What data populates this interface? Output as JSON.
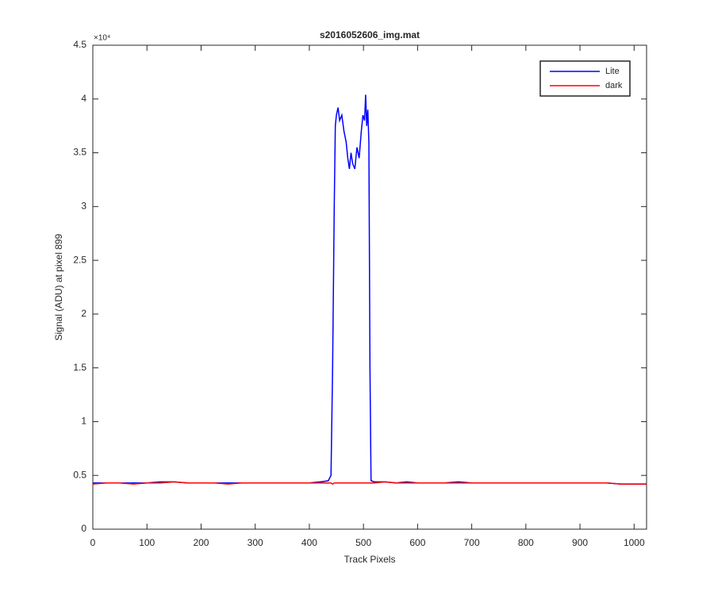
{
  "chart_data": {
    "type": "line",
    "title": "s2016052606_img.mat",
    "xlabel": "Track Pixels",
    "ylabel": "Signal (ADU) at pixel 899",
    "y_exponent": "×10⁴",
    "x": [
      0,
      25,
      50,
      75,
      100,
      125,
      150,
      175,
      200,
      225,
      250,
      275,
      300,
      325,
      350,
      375,
      400,
      420,
      435,
      440,
      443,
      446,
      448,
      450,
      453,
      456,
      460,
      464,
      468,
      471,
      474,
      477,
      480,
      484,
      488,
      492,
      496,
      499,
      502,
      504,
      506,
      508,
      510,
      512,
      514,
      520,
      540,
      560,
      580,
      600,
      625,
      650,
      675,
      700,
      725,
      750,
      775,
      800,
      825,
      850,
      875,
      900,
      925,
      950,
      975,
      1000,
      1023
    ],
    "series": [
      {
        "name": "Lite",
        "color": "#0000ff",
        "values": [
          0.43,
          0.43,
          0.43,
          0.43,
          0.43,
          0.44,
          0.44,
          0.43,
          0.43,
          0.43,
          0.43,
          0.43,
          0.43,
          0.43,
          0.43,
          0.43,
          0.43,
          0.44,
          0.45,
          0.5,
          1.5,
          3.0,
          3.75,
          3.85,
          3.92,
          3.8,
          3.85,
          3.7,
          3.6,
          3.45,
          3.35,
          3.5,
          3.4,
          3.35,
          3.55,
          3.45,
          3.7,
          3.85,
          3.8,
          4.04,
          3.75,
          3.9,
          3.6,
          1.5,
          0.45,
          0.44,
          0.44,
          0.43,
          0.44,
          0.43,
          0.43,
          0.43,
          0.44,
          0.43,
          0.43,
          0.43,
          0.43,
          0.43,
          0.43,
          0.43,
          0.43,
          0.43,
          0.43,
          0.43,
          0.42,
          0.42,
          0.42
        ]
      },
      {
        "name": "dark",
        "color": "#ff0000",
        "values": [
          0.42,
          0.43,
          0.43,
          0.42,
          0.43,
          0.43,
          0.44,
          0.43,
          0.43,
          0.43,
          0.42,
          0.43,
          0.43,
          0.43,
          0.43,
          0.43,
          0.43,
          0.43,
          0.43,
          0.43,
          0.42,
          0.43,
          0.43,
          0.43,
          0.43,
          0.43,
          0.43,
          0.43,
          0.43,
          0.43,
          0.43,
          0.43,
          0.43,
          0.43,
          0.43,
          0.43,
          0.43,
          0.43,
          0.43,
          0.43,
          0.43,
          0.43,
          0.43,
          0.43,
          0.43,
          0.43,
          0.44,
          0.43,
          0.43,
          0.43,
          0.43,
          0.43,
          0.43,
          0.43,
          0.43,
          0.43,
          0.43,
          0.43,
          0.43,
          0.43,
          0.43,
          0.43,
          0.43,
          0.43,
          0.42,
          0.42,
          0.42
        ]
      }
    ],
    "xlim": [
      0,
      1023
    ],
    "xticks": [
      0,
      100,
      200,
      300,
      400,
      500,
      600,
      700,
      800,
      900,
      1000
    ],
    "ylim": [
      0,
      4.5
    ],
    "yticks": [
      0,
      0.5,
      1,
      1.5,
      2,
      2.5,
      3,
      3.5,
      4,
      4.5
    ],
    "grid": false,
    "legend": "northeast"
  }
}
